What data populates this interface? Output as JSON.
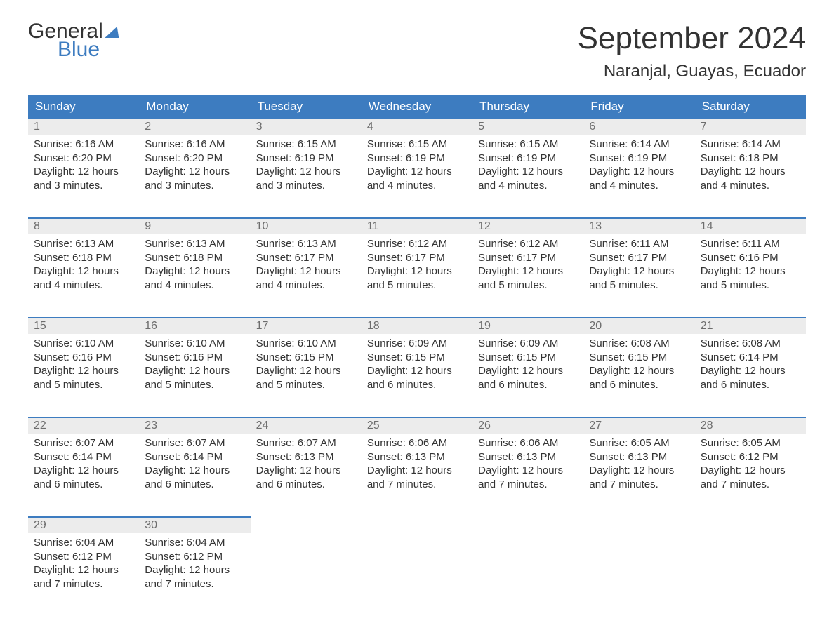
{
  "logo": {
    "word1": "General",
    "word2": "Blue"
  },
  "title": "September 2024",
  "location": "Naranjal, Guayas, Ecuador",
  "colors": {
    "header_bg": "#3d7cc0",
    "header_text": "#ffffff",
    "daynum_bg": "#ececec",
    "daynum_text": "#6d6d6d",
    "border": "#3d7cc0",
    "body_text": "#333333",
    "page_bg": "#ffffff"
  },
  "weekdays": [
    "Sunday",
    "Monday",
    "Tuesday",
    "Wednesday",
    "Thursday",
    "Friday",
    "Saturday"
  ],
  "weeks": [
    [
      {
        "n": "1",
        "sunrise": "Sunrise: 6:16 AM",
        "sunset": "Sunset: 6:20 PM",
        "day1": "Daylight: 12 hours",
        "day2": "and 3 minutes."
      },
      {
        "n": "2",
        "sunrise": "Sunrise: 6:16 AM",
        "sunset": "Sunset: 6:20 PM",
        "day1": "Daylight: 12 hours",
        "day2": "and 3 minutes."
      },
      {
        "n": "3",
        "sunrise": "Sunrise: 6:15 AM",
        "sunset": "Sunset: 6:19 PM",
        "day1": "Daylight: 12 hours",
        "day2": "and 3 minutes."
      },
      {
        "n": "4",
        "sunrise": "Sunrise: 6:15 AM",
        "sunset": "Sunset: 6:19 PM",
        "day1": "Daylight: 12 hours",
        "day2": "and 4 minutes."
      },
      {
        "n": "5",
        "sunrise": "Sunrise: 6:15 AM",
        "sunset": "Sunset: 6:19 PM",
        "day1": "Daylight: 12 hours",
        "day2": "and 4 minutes."
      },
      {
        "n": "6",
        "sunrise": "Sunrise: 6:14 AM",
        "sunset": "Sunset: 6:19 PM",
        "day1": "Daylight: 12 hours",
        "day2": "and 4 minutes."
      },
      {
        "n": "7",
        "sunrise": "Sunrise: 6:14 AM",
        "sunset": "Sunset: 6:18 PM",
        "day1": "Daylight: 12 hours",
        "day2": "and 4 minutes."
      }
    ],
    [
      {
        "n": "8",
        "sunrise": "Sunrise: 6:13 AM",
        "sunset": "Sunset: 6:18 PM",
        "day1": "Daylight: 12 hours",
        "day2": "and 4 minutes."
      },
      {
        "n": "9",
        "sunrise": "Sunrise: 6:13 AM",
        "sunset": "Sunset: 6:18 PM",
        "day1": "Daylight: 12 hours",
        "day2": "and 4 minutes."
      },
      {
        "n": "10",
        "sunrise": "Sunrise: 6:13 AM",
        "sunset": "Sunset: 6:17 PM",
        "day1": "Daylight: 12 hours",
        "day2": "and 4 minutes."
      },
      {
        "n": "11",
        "sunrise": "Sunrise: 6:12 AM",
        "sunset": "Sunset: 6:17 PM",
        "day1": "Daylight: 12 hours",
        "day2": "and 5 minutes."
      },
      {
        "n": "12",
        "sunrise": "Sunrise: 6:12 AM",
        "sunset": "Sunset: 6:17 PM",
        "day1": "Daylight: 12 hours",
        "day2": "and 5 minutes."
      },
      {
        "n": "13",
        "sunrise": "Sunrise: 6:11 AM",
        "sunset": "Sunset: 6:17 PM",
        "day1": "Daylight: 12 hours",
        "day2": "and 5 minutes."
      },
      {
        "n": "14",
        "sunrise": "Sunrise: 6:11 AM",
        "sunset": "Sunset: 6:16 PM",
        "day1": "Daylight: 12 hours",
        "day2": "and 5 minutes."
      }
    ],
    [
      {
        "n": "15",
        "sunrise": "Sunrise: 6:10 AM",
        "sunset": "Sunset: 6:16 PM",
        "day1": "Daylight: 12 hours",
        "day2": "and 5 minutes."
      },
      {
        "n": "16",
        "sunrise": "Sunrise: 6:10 AM",
        "sunset": "Sunset: 6:16 PM",
        "day1": "Daylight: 12 hours",
        "day2": "and 5 minutes."
      },
      {
        "n": "17",
        "sunrise": "Sunrise: 6:10 AM",
        "sunset": "Sunset: 6:15 PM",
        "day1": "Daylight: 12 hours",
        "day2": "and 5 minutes."
      },
      {
        "n": "18",
        "sunrise": "Sunrise: 6:09 AM",
        "sunset": "Sunset: 6:15 PM",
        "day1": "Daylight: 12 hours",
        "day2": "and 6 minutes."
      },
      {
        "n": "19",
        "sunrise": "Sunrise: 6:09 AM",
        "sunset": "Sunset: 6:15 PM",
        "day1": "Daylight: 12 hours",
        "day2": "and 6 minutes."
      },
      {
        "n": "20",
        "sunrise": "Sunrise: 6:08 AM",
        "sunset": "Sunset: 6:15 PM",
        "day1": "Daylight: 12 hours",
        "day2": "and 6 minutes."
      },
      {
        "n": "21",
        "sunrise": "Sunrise: 6:08 AM",
        "sunset": "Sunset: 6:14 PM",
        "day1": "Daylight: 12 hours",
        "day2": "and 6 minutes."
      }
    ],
    [
      {
        "n": "22",
        "sunrise": "Sunrise: 6:07 AM",
        "sunset": "Sunset: 6:14 PM",
        "day1": "Daylight: 12 hours",
        "day2": "and 6 minutes."
      },
      {
        "n": "23",
        "sunrise": "Sunrise: 6:07 AM",
        "sunset": "Sunset: 6:14 PM",
        "day1": "Daylight: 12 hours",
        "day2": "and 6 minutes."
      },
      {
        "n": "24",
        "sunrise": "Sunrise: 6:07 AM",
        "sunset": "Sunset: 6:13 PM",
        "day1": "Daylight: 12 hours",
        "day2": "and 6 minutes."
      },
      {
        "n": "25",
        "sunrise": "Sunrise: 6:06 AM",
        "sunset": "Sunset: 6:13 PM",
        "day1": "Daylight: 12 hours",
        "day2": "and 7 minutes."
      },
      {
        "n": "26",
        "sunrise": "Sunrise: 6:06 AM",
        "sunset": "Sunset: 6:13 PM",
        "day1": "Daylight: 12 hours",
        "day2": "and 7 minutes."
      },
      {
        "n": "27",
        "sunrise": "Sunrise: 6:05 AM",
        "sunset": "Sunset: 6:13 PM",
        "day1": "Daylight: 12 hours",
        "day2": "and 7 minutes."
      },
      {
        "n": "28",
        "sunrise": "Sunrise: 6:05 AM",
        "sunset": "Sunset: 6:12 PM",
        "day1": "Daylight: 12 hours",
        "day2": "and 7 minutes."
      }
    ],
    [
      {
        "n": "29",
        "sunrise": "Sunrise: 6:04 AM",
        "sunset": "Sunset: 6:12 PM",
        "day1": "Daylight: 12 hours",
        "day2": "and 7 minutes."
      },
      {
        "n": "30",
        "sunrise": "Sunrise: 6:04 AM",
        "sunset": "Sunset: 6:12 PM",
        "day1": "Daylight: 12 hours",
        "day2": "and 7 minutes."
      },
      null,
      null,
      null,
      null,
      null
    ]
  ]
}
